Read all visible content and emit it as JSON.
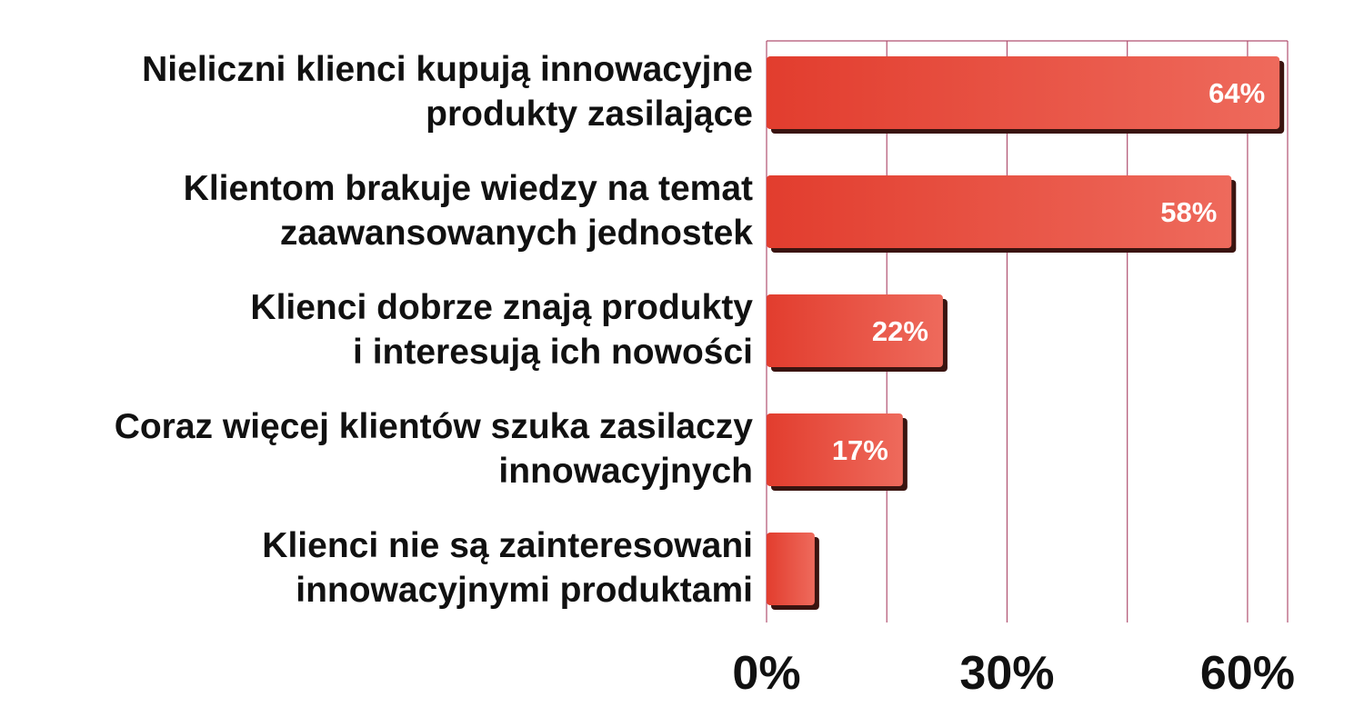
{
  "chart_data": {
    "type": "bar",
    "orientation": "horizontal",
    "categories": [
      [
        "Nieliczni klienci kupują innowacyjne",
        "produkty zasilające"
      ],
      [
        "Klientom brakuje wiedzy na temat",
        "zaawansowanych jednostek"
      ],
      [
        "Klienci dobrze znają produkty",
        "i interesują ich nowości"
      ],
      [
        "Coraz więcej klientów szuka zasilaczy",
        "innowacyjnych"
      ],
      [
        "Klienci nie są zainteresowani",
        "innowacyjnymi produktami"
      ]
    ],
    "values": [
      64,
      58,
      22,
      17,
      6
    ],
    "data_labels": [
      "64%",
      "58%",
      "22%",
      "17%",
      ""
    ],
    "xlim": [
      0,
      65
    ],
    "xticks": [
      0,
      30,
      60
    ],
    "xtick_labels": [
      "0%",
      "30%",
      "60%"
    ],
    "gridlines": [
      0,
      15,
      30,
      45,
      60,
      65
    ],
    "grid": true,
    "legend": "none",
    "colors": {
      "bar": "#e8483a",
      "bar_light": "#ee6a5c",
      "bar_shadow": "#3a1410",
      "grid": "#b05070"
    }
  }
}
